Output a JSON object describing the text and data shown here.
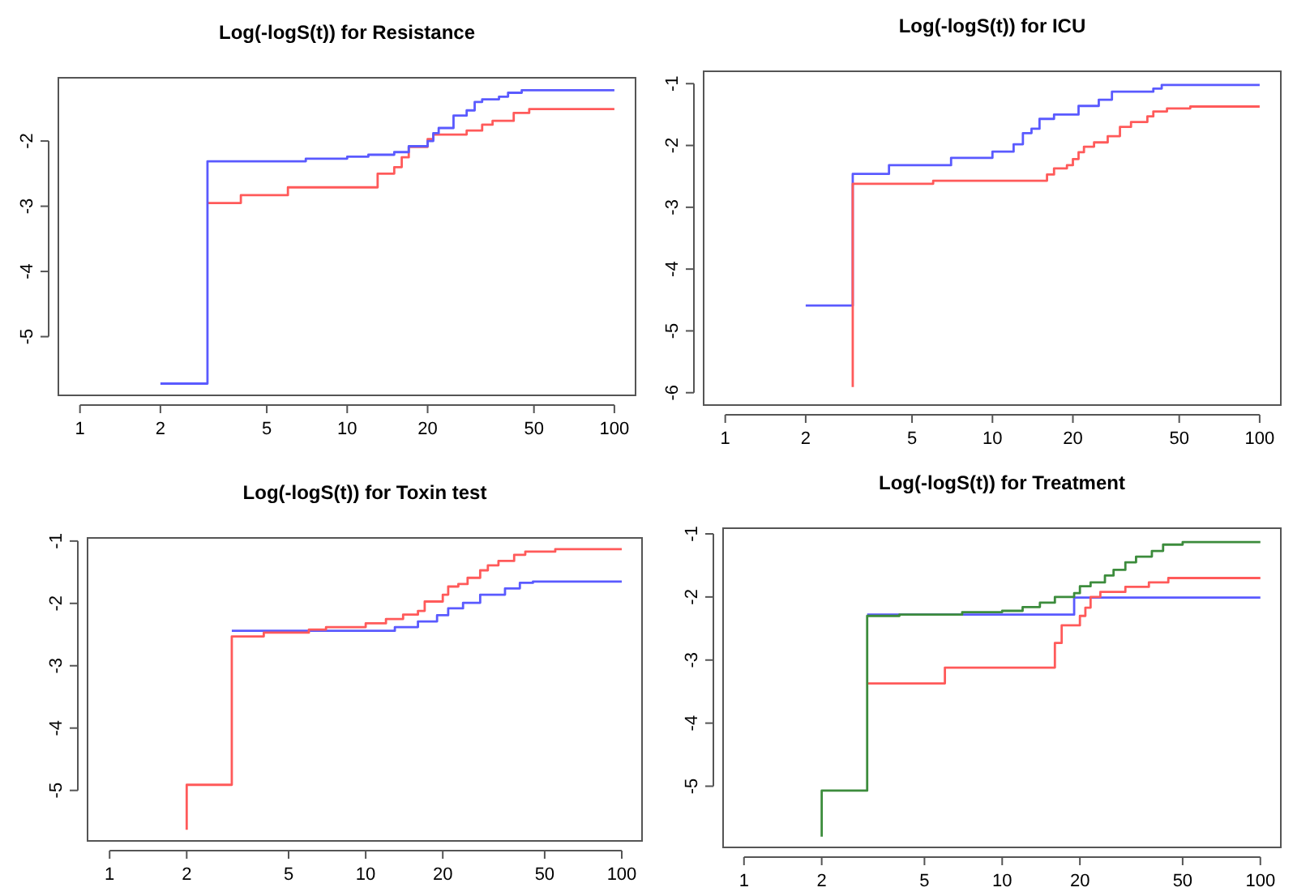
{
  "chart_data": [
    {
      "type": "step",
      "title": "Log(-logS(t)) for Resistance",
      "log": "x",
      "xlim": [
        0.83,
        120
      ],
      "ylim": [
        -5.9,
        -1.03
      ],
      "xticks": [
        1,
        2,
        5,
        10,
        20,
        50,
        100
      ],
      "yticks": [
        -5,
        -4,
        -3,
        -2
      ],
      "series": [
        {
          "color": "#ff5a5a",
          "x": [
            3,
            4,
            6,
            13,
            15,
            16,
            17,
            20,
            21,
            28,
            32,
            35,
            42,
            48,
            100
          ],
          "values": [
            -2.95,
            -2.83,
            -2.71,
            -2.5,
            -2.4,
            -2.25,
            -2.09,
            -1.97,
            -1.9,
            -1.84,
            -1.75,
            -1.69,
            -1.57,
            -1.51,
            -1.51
          ]
        },
        {
          "color": "#5a5aff",
          "x": [
            2,
            3,
            7,
            10,
            12,
            15,
            17,
            20,
            21,
            22,
            25,
            28,
            30,
            32,
            37,
            40,
            45,
            100
          ],
          "values": [
            -5.72,
            -2.31,
            -2.27,
            -2.24,
            -2.21,
            -2.17,
            -2.08,
            -2.0,
            -1.88,
            -1.8,
            -1.61,
            -1.53,
            -1.4,
            -1.36,
            -1.32,
            -1.26,
            -1.22,
            -1.22
          ]
        }
      ]
    },
    {
      "type": "step",
      "title": "Log(-logS(t)) for ICU",
      "log": "x",
      "xlim": [
        0.83,
        120
      ],
      "ylim": [
        -6.2,
        -0.8
      ],
      "xticks": [
        1,
        2,
        5,
        10,
        20,
        50,
        100
      ],
      "yticks": [
        -6,
        -5,
        -4,
        -3,
        -2,
        -1
      ],
      "series": [
        {
          "color": "#5a5aff",
          "x": [
            2,
            3,
            4.1,
            7,
            10,
            12,
            13,
            14,
            15,
            17,
            21,
            25,
            28,
            40,
            43,
            100
          ],
          "values": [
            -4.59,
            -2.46,
            -2.32,
            -2.2,
            -2.1,
            -1.98,
            -1.8,
            -1.73,
            -1.57,
            -1.5,
            -1.36,
            -1.26,
            -1.13,
            -1.08,
            -1.02,
            -1.02
          ]
        },
        {
          "color": "#ff5a5a",
          "x": [
            3,
            3,
            6,
            16,
            17,
            19,
            20,
            21,
            22,
            24,
            27,
            30,
            33,
            38,
            40,
            45,
            55,
            100
          ],
          "values": [
            -5.91,
            -2.62,
            -2.57,
            -2.47,
            -2.37,
            -2.32,
            -2.22,
            -2.11,
            -2.02,
            -1.95,
            -1.85,
            -1.7,
            -1.62,
            -1.53,
            -1.45,
            -1.4,
            -1.37,
            -1.37
          ]
        }
      ]
    },
    {
      "type": "step",
      "title": "Log(-logS(t)) for Toxin test",
      "log": "x",
      "xlim": [
        0.82,
        120
      ],
      "ylim": [
        -5.81,
        -0.95
      ],
      "xticks": [
        1,
        2,
        5,
        10,
        20,
        50,
        100
      ],
      "yticks": [
        -5,
        -4,
        -3,
        -2,
        -1
      ],
      "series": [
        {
          "color": "#5a5aff",
          "x": [
            3,
            13,
            16,
            19,
            21,
            24,
            28,
            35,
            40,
            45,
            100
          ],
          "values": [
            -2.44,
            -2.38,
            -2.29,
            -2.19,
            -2.08,
            -1.99,
            -1.86,
            -1.76,
            -1.67,
            -1.65,
            -1.65
          ]
        },
        {
          "color": "#ff5a5a",
          "x": [
            2,
            2,
            3,
            4,
            6,
            7,
            10,
            12,
            14,
            16,
            17,
            20,
            21,
            23,
            25,
            28,
            30,
            33,
            38,
            42,
            55,
            100
          ],
          "values": [
            -5.63,
            -4.91,
            -2.53,
            -2.47,
            -2.42,
            -2.38,
            -2.32,
            -2.25,
            -2.18,
            -2.12,
            -1.97,
            -1.86,
            -1.73,
            -1.69,
            -1.59,
            -1.47,
            -1.39,
            -1.32,
            -1.22,
            -1.17,
            -1.13,
            -1.13
          ]
        }
      ]
    },
    {
      "type": "step",
      "title": "Log(-logS(t)) for Treatment",
      "log": "x",
      "xlim": [
        0.83,
        120
      ],
      "ylim": [
        -5.97,
        -0.91
      ],
      "xticks": [
        1,
        2,
        5,
        10,
        20,
        50,
        100
      ],
      "yticks": [
        -5,
        -4,
        -3,
        -2,
        -1
      ],
      "series": [
        {
          "color": "#5a5aff",
          "x": [
            3,
            19,
            100
          ],
          "values": [
            -2.28,
            -2.01,
            -2.01
          ]
        },
        {
          "color": "#ff5a5a",
          "x": [
            3,
            6,
            16,
            17,
            20,
            21,
            22,
            24,
            30,
            37,
            44,
            100
          ],
          "values": [
            -3.37,
            -3.12,
            -2.73,
            -2.45,
            -2.3,
            -2.17,
            -2.0,
            -1.92,
            -1.84,
            -1.77,
            -1.7,
            -1.7
          ]
        },
        {
          "color": "#3c8c3c",
          "x": [
            2,
            2,
            3,
            4,
            7,
            10,
            12,
            14,
            16,
            19,
            20,
            22,
            25,
            27,
            30,
            33,
            38,
            42,
            50,
            100
          ],
          "values": [
            -5.8,
            -5.07,
            -2.3,
            -2.28,
            -2.24,
            -2.22,
            -2.16,
            -2.09,
            -2.0,
            -1.94,
            -1.83,
            -1.77,
            -1.66,
            -1.57,
            -1.45,
            -1.36,
            -1.27,
            -1.17,
            -1.13,
            -1.13
          ]
        }
      ]
    }
  ]
}
